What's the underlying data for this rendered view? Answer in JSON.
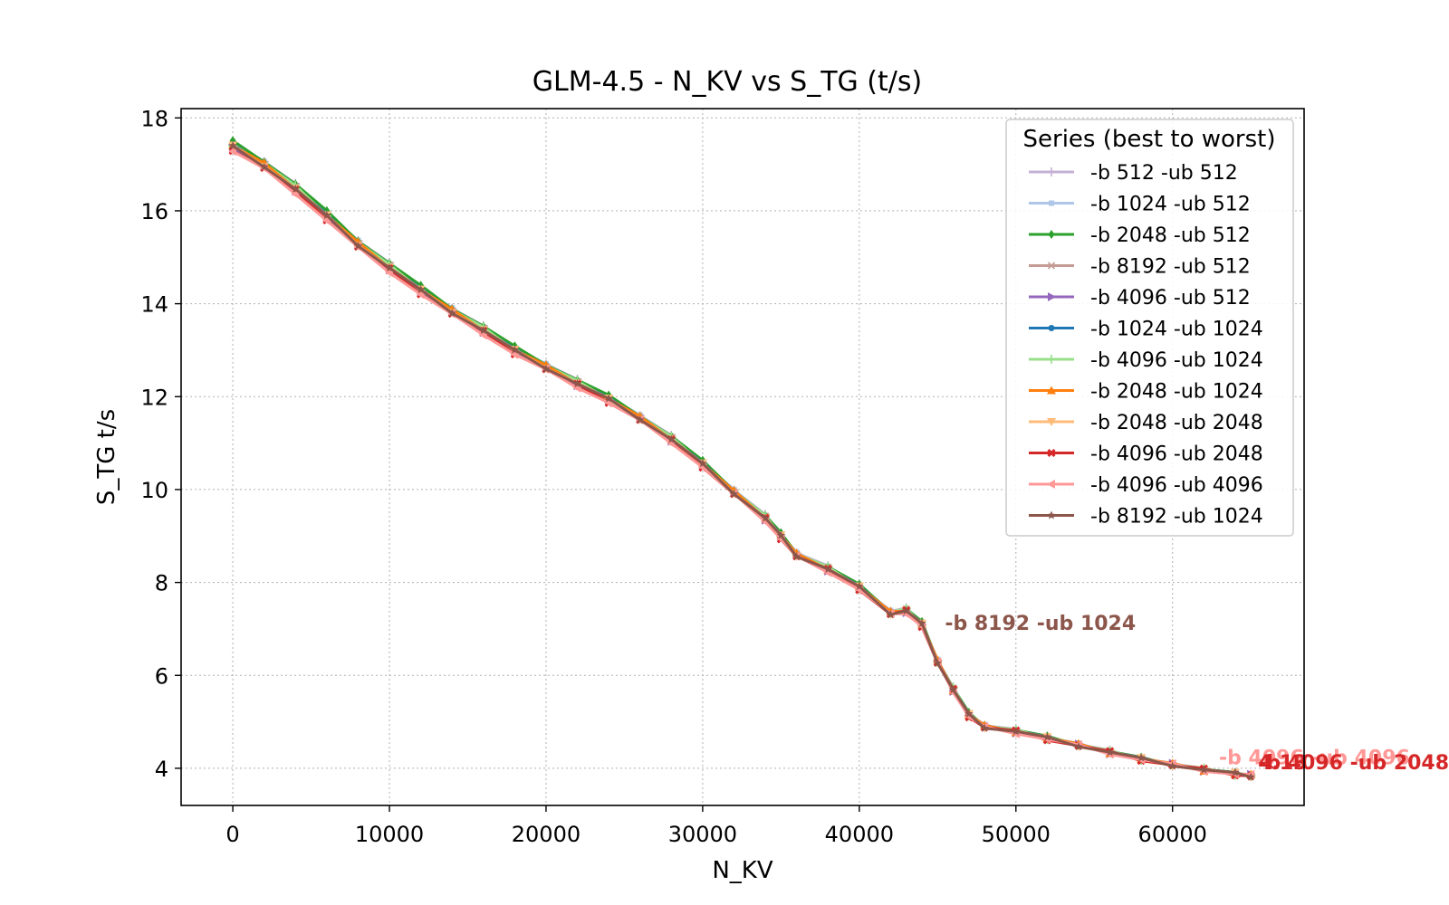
{
  "chart_data": {
    "type": "line",
    "title": "GLM-4.5 - N_KV vs S_TG (t/s)",
    "xlabel": "N_KV",
    "ylabel": "S_TG t/s",
    "xlim": [
      -3300,
      68400
    ],
    "ylim": [
      3.2,
      18.2
    ],
    "xticks": [
      0,
      10000,
      20000,
      30000,
      40000,
      50000,
      60000
    ],
    "xtick_labels": [
      "0",
      "10000",
      "20000",
      "30000",
      "40000",
      "50000",
      "60000"
    ],
    "yticks": [
      4,
      6,
      8,
      10,
      12,
      14,
      16,
      18
    ],
    "ytick_labels": [
      "4",
      "6",
      "8",
      "10",
      "12",
      "14",
      "16",
      "18"
    ],
    "grid": true,
    "legend": {
      "title": "Series (best to worst)",
      "placement": "top-right"
    },
    "base_curve": {
      "x": [
        0,
        2000,
        4000,
        6000,
        8000,
        10000,
        12000,
        14000,
        16000,
        18000,
        20000,
        22000,
        24000,
        26000,
        28000,
        30000,
        32000,
        34000,
        35000,
        36000,
        38000,
        40000,
        42000,
        43000,
        44000,
        45000,
        46000,
        47000,
        48000,
        50000,
        52000,
        54000,
        56000,
        58000,
        60000,
        62000,
        64000,
        65000
      ],
      "y": [
        17.4,
        17.0,
        16.5,
        15.9,
        15.3,
        14.8,
        14.3,
        13.85,
        13.45,
        13.0,
        12.65,
        12.3,
        11.95,
        11.55,
        11.1,
        10.55,
        9.95,
        9.4,
        9.0,
        8.6,
        8.3,
        7.9,
        7.35,
        7.4,
        7.1,
        6.3,
        5.7,
        5.15,
        4.9,
        4.8,
        4.65,
        4.5,
        4.35,
        4.2,
        4.08,
        3.97,
        3.88,
        3.84
      ]
    },
    "series": [
      {
        "name": "-b 512 -ub 512",
        "color": "#c5b0d5",
        "marker": "plus",
        "offset": 0.06,
        "end_value": 4.13
      },
      {
        "name": "-b 1024 -ub 512",
        "color": "#aec7e8",
        "marker": "square",
        "offset": 0.04,
        "end_value": 4.13
      },
      {
        "name": "-b 2048 -ub 512",
        "color": "#2ca02c",
        "marker": "diamond",
        "offset": 0.08,
        "end_value": 4.13
      },
      {
        "name": "-b 8192 -ub 512",
        "color": "#c49c94",
        "marker": "x",
        "offset": 0.0,
        "end_value": 4.13
      },
      {
        "name": "-b 4096 -ub 512",
        "color": "#9467bd",
        "marker": "triangle-right",
        "offset": -0.05,
        "end_value": 4.13
      },
      {
        "name": "-b 1024 -ub 1024",
        "color": "#1f77b4",
        "marker": "circle",
        "offset": 0.0,
        "end_value": 4.13
      },
      {
        "name": "-b 4096 -ub 1024",
        "color": "#98df8a",
        "marker": "plus",
        "offset": 0.02,
        "end_value": 4.13
      },
      {
        "name": "-b 2048 -ub 1024",
        "color": "#ff7f0e",
        "marker": "triangle-up",
        "offset": 0.0,
        "end_value": 4.13
      },
      {
        "name": "-b 2048 -ub 2048",
        "color": "#ffbb78",
        "marker": "triangle-down",
        "offset": -0.02,
        "end_value": 4.13
      },
      {
        "name": "-b 4096 -ub 2048",
        "color": "#d62728",
        "marker": "x-bold",
        "offset": -0.08,
        "end_value": 4.13
      },
      {
        "name": "-b 4096 -ub 4096",
        "color": "#ff9896",
        "marker": "triangle-left",
        "offset": -0.12,
        "end_value": 4.13
      },
      {
        "name": "-b 8192 -ub 1024",
        "color": "#8c564b",
        "marker": "star",
        "offset": -0.03,
        "end_value": 4.13
      }
    ],
    "annotations": [
      {
        "text": "-b 8192 -ub 1024",
        "color": "#8c564b",
        "x": 45000,
        "y": 7.1
      },
      {
        "text": "-b 4096 -ub 4096",
        "color": "#ff9896",
        "x": 62500,
        "y": 4.2
      },
      {
        "text": "-b 4096 -ub 2048",
        "color": "#d62728",
        "x": 65000,
        "y": 4.1
      },
      {
        "text": "4.13",
        "color": "#d62728",
        "x": 65000,
        "y": 4.1
      }
    ]
  }
}
